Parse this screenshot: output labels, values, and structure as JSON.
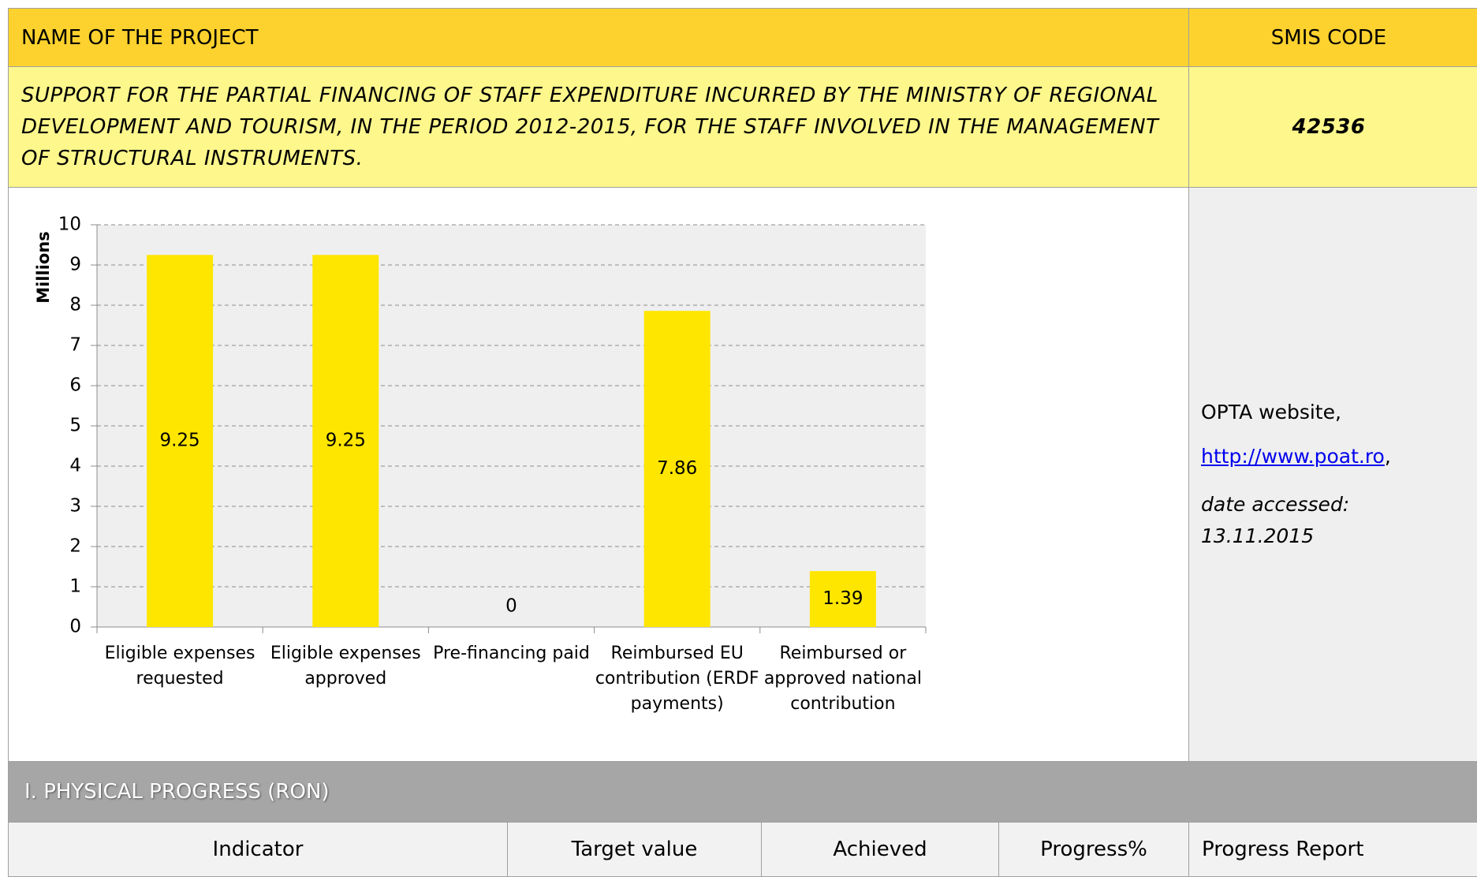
{
  "header": {
    "project_label": "NAME OF THE PROJECT",
    "code_label": "SMIS CODE"
  },
  "project": {
    "name": "SUPPORT FOR THE PARTIAL FINANCING OF STAFF EXPENDITURE INCURRED BY THE MINISTRY OF REGIONAL DEVELOPMENT AND TOURISM, IN THE PERIOD 2012-2015, FOR THE STAFF INVOLVED IN THE MANAGEMENT OF STRUCTURAL INSTRUMENTS.",
    "code": "42536"
  },
  "chart_data": {
    "type": "bar",
    "y_label": "Millions",
    "categories": [
      "Eligible expenses requested",
      "Eligible expenses approved",
      "Pre-financing paid",
      "Reimbursed EU contribution (ERDF payments)",
      "Reimbursed or approved national contribution"
    ],
    "values": [
      9.25,
      9.25,
      0,
      7.86,
      1.39
    ],
    "color": "#ffe600",
    "ylim": [
      0,
      10
    ],
    "yticks": [
      0,
      1,
      2,
      3,
      4,
      5,
      6,
      7,
      8,
      9,
      10
    ],
    "grid": true
  },
  "source": {
    "label": "OPTA website,",
    "link": "http://www.poat.ro",
    "link_suffix": ",",
    "note": "date accessed: 13.11.2015"
  },
  "section": {
    "title": "I.  PHYSICAL PROGRESS (RON)"
  },
  "table": {
    "headers": [
      "Indicator",
      "Target value",
      "Achieved",
      "Progress%",
      "Progress Report"
    ]
  }
}
